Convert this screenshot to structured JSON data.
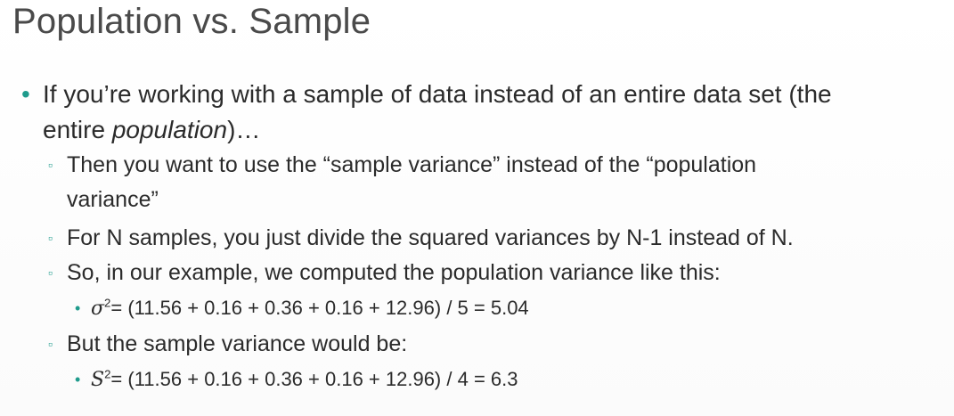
{
  "slide": {
    "title": "Population vs. Sample",
    "bullet1": {
      "line1": "If you’re working with a sample of data instead of an entire data set (the",
      "line2_prefix": "entire ",
      "line2_em": "population",
      "line2_suffix": ")…"
    },
    "sub1": {
      "line1": "Then you want to use the “sample variance” instead of the “population",
      "line2": "variance”"
    },
    "sub2": "For N samples, you just divide the squared variances by N-1 instead of N.",
    "sub3": "So, in our example, we computed the population variance like this:",
    "formula1": {
      "symbol": "σ",
      "exp": "2",
      "rest": "= (11.56 + 0.16 + 0.36 + 0.16 + 12.96) / 5 = 5.04"
    },
    "sub4": "But the sample variance would be:",
    "formula2": {
      "symbol": "S",
      "exp": "2",
      "rest": "= (11.56 + 0.16 + 0.36 + 0.16 + 12.96) / 4 = 6.3"
    },
    "markers": {
      "level1": "•",
      "level2": "▫",
      "level3": "•"
    },
    "colors": {
      "accent": "#1f9b8c",
      "text": "#2b2b2b",
      "title": "#4a4a4a"
    }
  }
}
